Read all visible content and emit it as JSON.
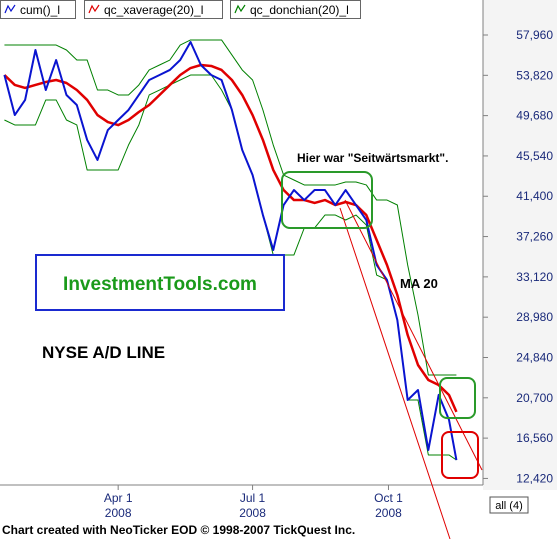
{
  "chart_data": {
    "type": "line",
    "x": [
      14,
      21,
      28,
      35,
      42,
      49,
      56,
      63,
      70,
      77,
      84,
      91,
      98,
      105,
      112,
      119,
      126,
      133,
      140,
      147,
      154,
      161,
      168,
      175,
      182,
      189,
      196,
      203,
      210,
      217,
      224,
      231,
      238,
      245,
      252,
      259,
      266,
      273,
      280,
      287,
      294,
      301,
      308,
      315,
      320
    ],
    "series": [
      {
        "name": "cum()_l",
        "color": "#0a14d0",
        "values": [
          53850,
          49740,
          51290,
          56420,
          52310,
          55390,
          51800,
          50770,
          47180,
          45130,
          48200,
          49230,
          50260,
          51800,
          53340,
          53850,
          54370,
          55390,
          57240,
          54880,
          53850,
          53340,
          50260,
          46150,
          43580,
          39470,
          35880,
          40500,
          42040,
          41010,
          42040,
          42040,
          40500,
          42040,
          40500,
          38960,
          34340,
          32800,
          28690,
          20470,
          21500,
          15340,
          21000,
          18430,
          14310
        ]
      },
      {
        "name": "qc_xaverage(20)_l",
        "color": "#e00000",
        "values": [
          53850,
          52830,
          52520,
          52830,
          53130,
          53340,
          53030,
          52310,
          51290,
          49740,
          49020,
          48710,
          49230,
          50050,
          50770,
          51800,
          52830,
          53850,
          54570,
          54880,
          54780,
          54370,
          53340,
          51800,
          49740,
          47180,
          44100,
          42040,
          41010,
          41010,
          40710,
          41010,
          40500,
          40810,
          40500,
          39470,
          36910,
          34340,
          31260,
          27150,
          24070,
          22530,
          22010,
          20990,
          19250
        ]
      },
      {
        "name": "qc_donchian(20)_l",
        "color": "#008000",
        "high": [
          56930,
          56930,
          56930,
          56930,
          56930,
          56930,
          56420,
          55390,
          55390,
          52310,
          52310,
          51800,
          51800,
          52830,
          54370,
          54880,
          55390,
          56930,
          57450,
          57450,
          57450,
          57450,
          55910,
          54370,
          53340,
          50260,
          46660,
          43580,
          43070,
          42560,
          42560,
          42560,
          42560,
          42860,
          42860,
          42560,
          41010,
          41010,
          40500,
          34340,
          29200,
          23040,
          23040,
          23040,
          23040
        ],
        "low": [
          49230,
          48720,
          48720,
          48720,
          51290,
          51290,
          49230,
          48720,
          44100,
          44100,
          44100,
          44100,
          46660,
          48720,
          51800,
          52310,
          52830,
          53340,
          53850,
          53850,
          53850,
          52310,
          50260,
          46150,
          43580,
          39470,
          35370,
          35370,
          35370,
          38140,
          38140,
          39470,
          39470,
          38960,
          39470,
          38450,
          33310,
          32800,
          28690,
          20470,
          20470,
          14830,
          14830,
          14830,
          14310
        ]
      }
    ],
    "xlim": [
      11,
      338
    ],
    "xticks": [
      {
        "value": 91,
        "label": "Apr 1\n2008"
      },
      {
        "value": 182,
        "label": "Jul 1\n2008"
      },
      {
        "value": 274,
        "label": "Oct 1\n2008"
      }
    ],
    "ylim": [
      11745,
      61555
    ],
    "yticks": [
      {
        "value": 57960,
        "label": "57,960"
      },
      {
        "value": 53820,
        "label": "53,820"
      },
      {
        "value": 49680,
        "label": "49,680"
      },
      {
        "value": 45540,
        "label": "45,540"
      },
      {
        "value": 41400,
        "label": "41,400"
      },
      {
        "value": 37260,
        "label": "37,260"
      },
      {
        "value": 33120,
        "label": "33,120"
      },
      {
        "value": 28980,
        "label": "28,980"
      },
      {
        "value": 24840,
        "label": "24,840"
      },
      {
        "value": 20700,
        "label": "20,700"
      },
      {
        "value": 16560,
        "label": "16,560"
      },
      {
        "value": 12420,
        "label": "12,420"
      }
    ],
    "annotations": [
      "Hier war \"Seitwärtsmarkt\".",
      "MA 20",
      "InvestmentTools.com",
      "NYSE A/D LINE"
    ],
    "button": "all (4)",
    "footer": "Chart created with NeoTicker EOD © 1998-2007 TickQuest Inc."
  }
}
